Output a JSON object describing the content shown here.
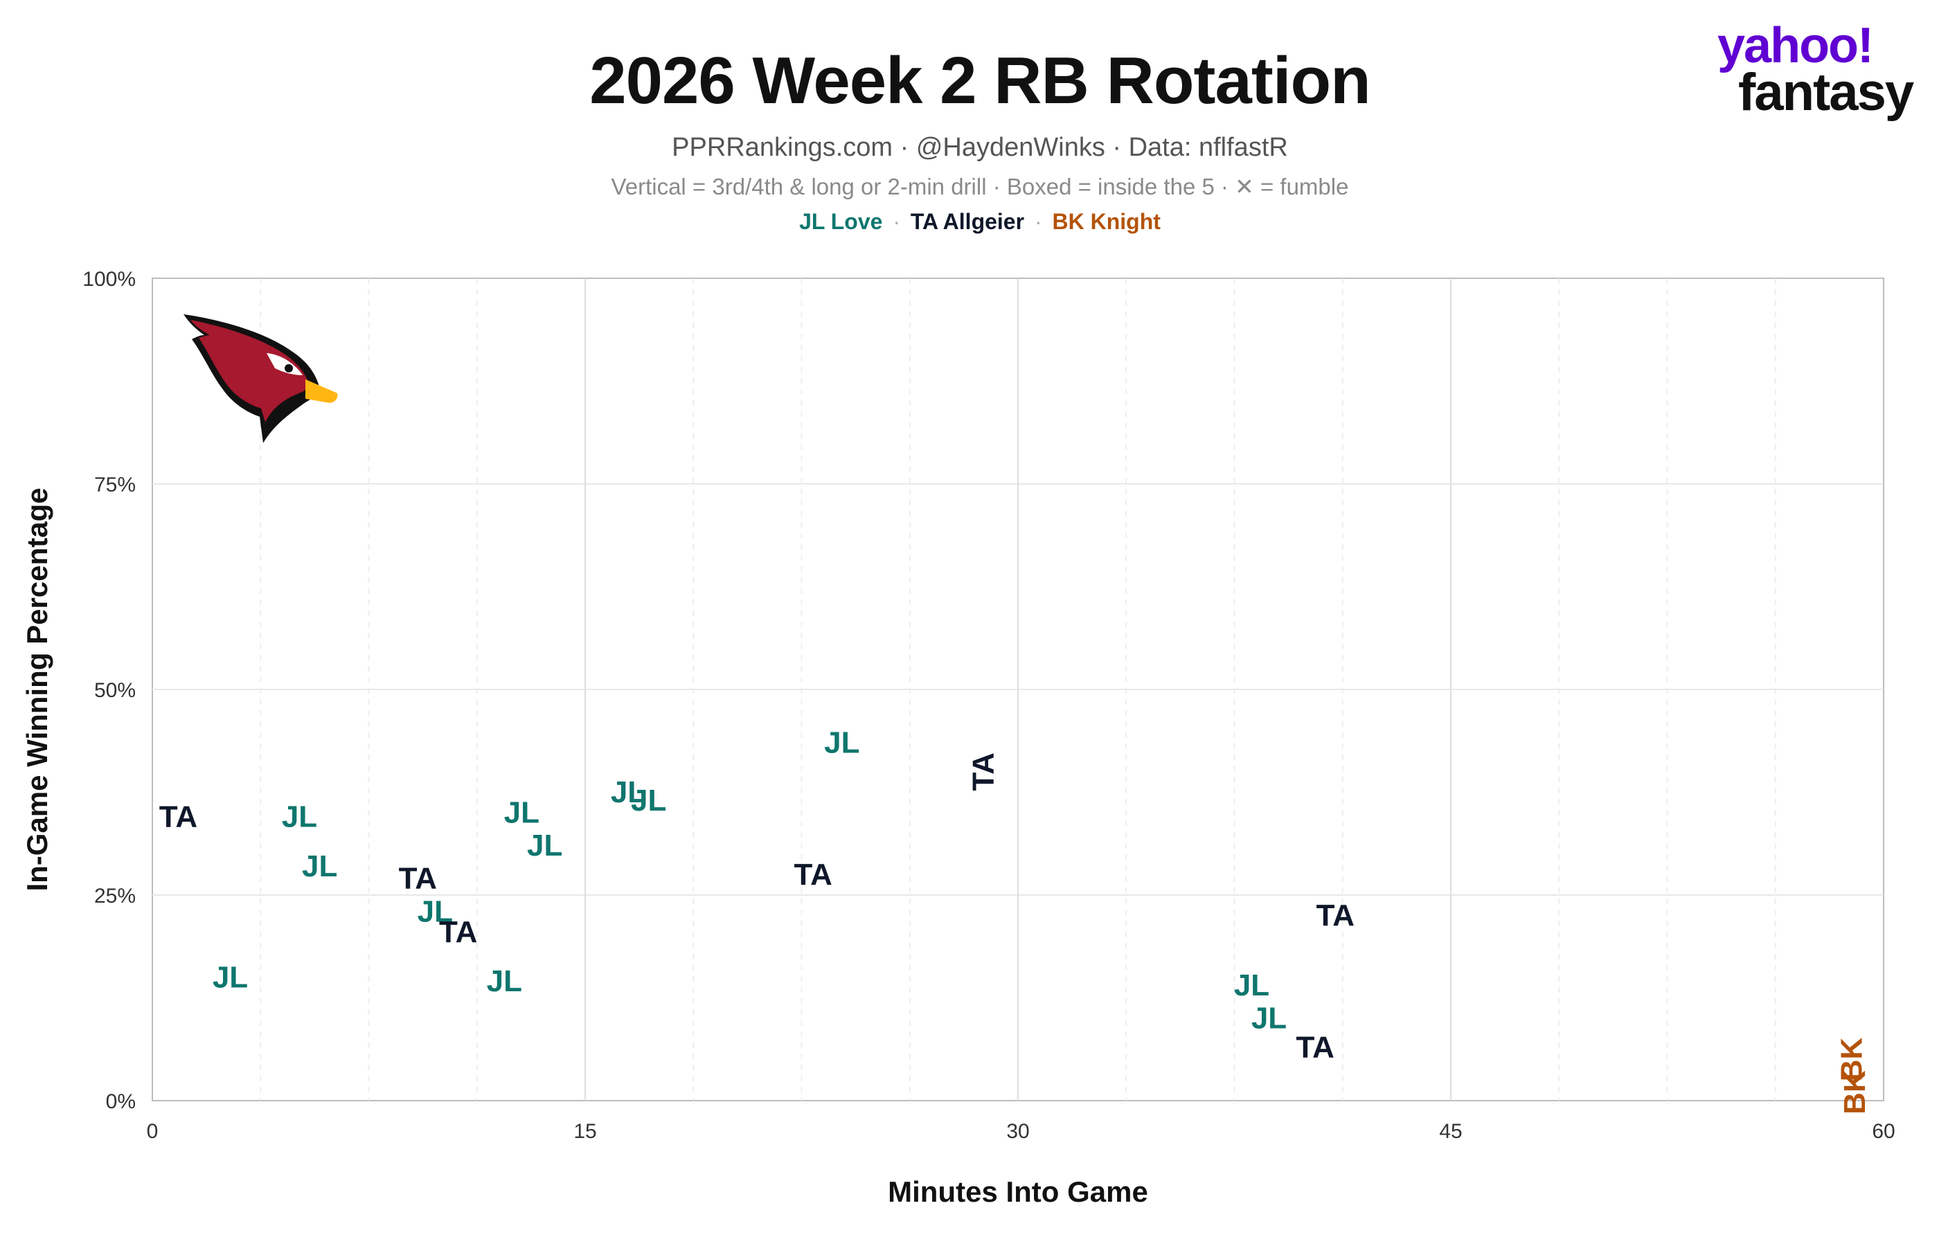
{
  "header": {
    "title": "2026 Week 2 RB Rotation",
    "subtitle": "PPRRankings.com · @HaydenWinks · Data: nflfastR",
    "note": "Vertical = 3rd/4th & long or 2-min drill · Boxed = inside the 5 · ✕ = fumble",
    "legend": [
      {
        "label": "JL Love",
        "color": "#0f766e"
      },
      {
        "label": "TA Allgeier",
        "color": "#0f172a"
      },
      {
        "label": "BK Knight",
        "color": "#b45309"
      }
    ],
    "legend_separator": "·"
  },
  "brand": {
    "line1": "yahoo!",
    "line2": "fantasy",
    "color": "#6001d2"
  },
  "team_logo": "cardinal-bird-icon",
  "chart_data": {
    "type": "scatter",
    "xlabel": "Minutes Into Game",
    "ylabel": "In-Game Winning Percentage",
    "xlim": [
      0,
      60
    ],
    "ylim": [
      0,
      100
    ],
    "x_ticks": [
      0,
      15,
      30,
      45,
      60
    ],
    "x_tick_labels": [
      "0",
      "15",
      "30",
      "45",
      "60"
    ],
    "y_ticks": [
      0,
      25,
      50,
      75,
      100
    ],
    "y_tick_labels": [
      "0%",
      "25%",
      "50%",
      "75%",
      "100%"
    ],
    "quarter_lines": [
      15,
      30,
      45
    ],
    "grid": true,
    "series": [
      {
        "name": "JL Love",
        "marker": "JL",
        "color": "#0f766e",
        "points": [
          {
            "x": 2.7,
            "y": 15.0,
            "vertical": false
          },
          {
            "x": 5.1,
            "y": 34.5,
            "vertical": false
          },
          {
            "x": 5.8,
            "y": 28.5,
            "vertical": false
          },
          {
            "x": 9.8,
            "y": 23.0,
            "vertical": false
          },
          {
            "x": 12.2,
            "y": 14.5,
            "vertical": false
          },
          {
            "x": 12.8,
            "y": 35.0,
            "vertical": false
          },
          {
            "x": 13.6,
            "y": 31.0,
            "vertical": false
          },
          {
            "x": 16.5,
            "y": 37.5,
            "vertical": false
          },
          {
            "x": 17.2,
            "y": 36.5,
            "vertical": false
          },
          {
            "x": 23.9,
            "y": 43.5,
            "vertical": false
          },
          {
            "x": 38.1,
            "y": 14.0,
            "vertical": false
          },
          {
            "x": 38.7,
            "y": 10.0,
            "vertical": false
          }
        ]
      },
      {
        "name": "TA Allgeier",
        "marker": "TA",
        "color": "#0f172a",
        "points": [
          {
            "x": 0.9,
            "y": 34.5,
            "vertical": false
          },
          {
            "x": 9.2,
            "y": 27.0,
            "vertical": false
          },
          {
            "x": 10.6,
            "y": 20.5,
            "vertical": false
          },
          {
            "x": 22.9,
            "y": 27.5,
            "vertical": false
          },
          {
            "x": 28.8,
            "y": 40.0,
            "vertical": true
          },
          {
            "x": 40.3,
            "y": 6.5,
            "vertical": false
          },
          {
            "x": 41.0,
            "y": 22.5,
            "vertical": false
          }
        ]
      },
      {
        "name": "BK Knight",
        "marker": "BK",
        "color": "#b45309",
        "points": [
          {
            "x": 58.9,
            "y": 5.0,
            "vertical": true
          },
          {
            "x": 59.0,
            "y": 1.0,
            "vertical": true
          }
        ]
      }
    ]
  }
}
